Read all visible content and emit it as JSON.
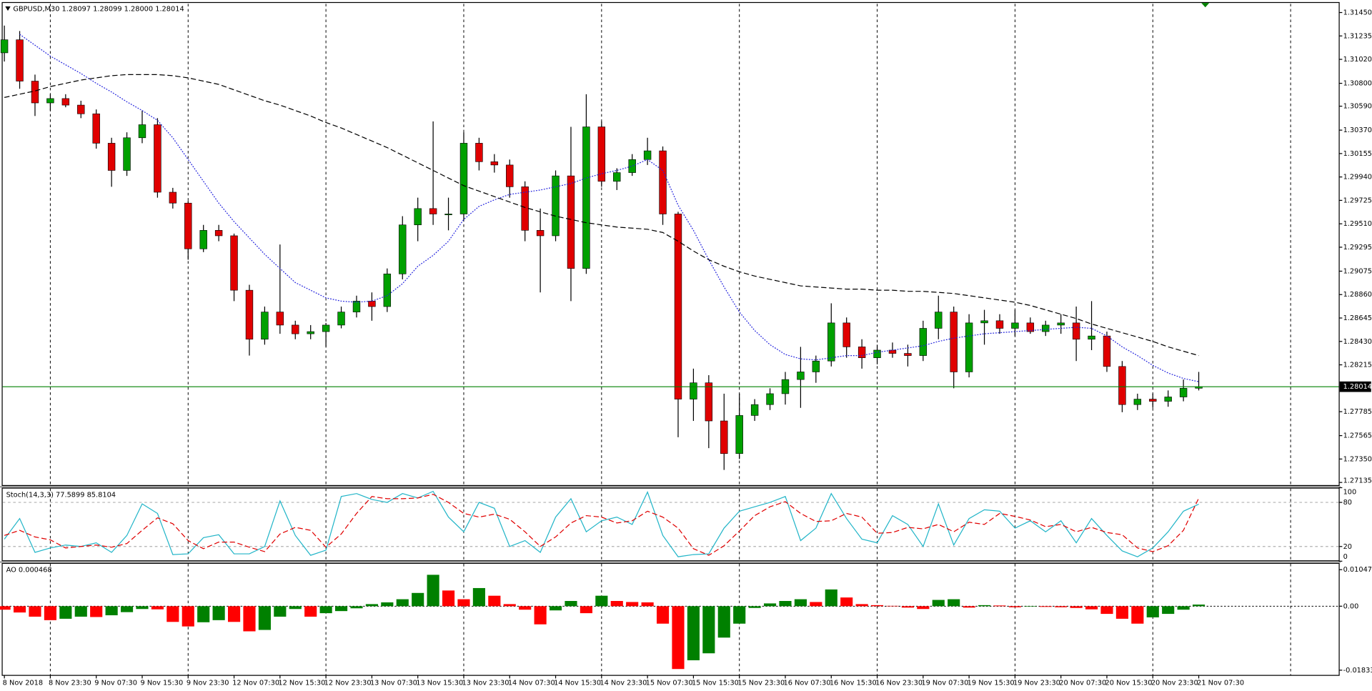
{
  "chart_data": [
    {
      "type": "candlestick",
      "title": "GBPUSD,M30  1.28097 1.28099 1.28000 1.28014",
      "categories": [
        "8 Nov 2018",
        null,
        null,
        "8 Nov 23:30",
        null,
        null,
        "9 Nov 07:30",
        null,
        null,
        "9 Nov 15:30",
        null,
        null,
        "9 Nov 23:30",
        null,
        null,
        "12 Nov 07:30",
        null,
        null,
        "12 Nov 15:30",
        null,
        null,
        "12 Nov 23:30",
        null,
        null,
        "13 Nov 07:30",
        null,
        null,
        "13 Nov 15:30",
        null,
        null,
        "13 Nov 23:30",
        null,
        null,
        "14 Nov 07:30",
        null,
        null,
        "14 Nov 15:30",
        null,
        null,
        "14 Nov 23:30",
        null,
        null,
        "15 Nov 07:30",
        null,
        null,
        "15 Nov 15:30",
        null,
        null,
        "15 Nov 23:30",
        null,
        null,
        "16 Nov 07:30",
        null,
        null,
        "16 Nov 15:30",
        null,
        null,
        "16 Nov 23:30",
        null,
        null,
        "19 Nov 07:30",
        null,
        null,
        "19 Nov 15:30",
        null,
        null,
        "19 Nov 23:30",
        null,
        null,
        "20 Nov 07:30",
        null,
        null,
        "20 Nov 15:30",
        null,
        null,
        "20 Nov 23:30",
        null,
        null,
        "21 Nov 07:30"
      ],
      "open": [
        1.3108,
        1.312,
        1.3082,
        1.3062,
        1.3066,
        1.306,
        1.3052,
        1.3025,
        1.3,
        1.303,
        1.3042,
        1.298,
        1.297,
        1.2928,
        1.2945,
        1.294,
        1.289,
        1.2845,
        1.287,
        1.2858,
        1.285,
        1.2852,
        1.2858,
        1.287,
        1.288,
        1.2875,
        1.2905,
        1.295,
        1.2965,
        1.296,
        1.296,
        1.3025,
        1.3008,
        1.3005,
        1.2985,
        1.2945,
        1.294,
        1.2995,
        1.291,
        1.304,
        1.299,
        1.2998,
        1.301,
        1.3018,
        1.296,
        1.279,
        1.2805,
        1.277,
        1.274,
        1.2775,
        1.2785,
        1.2795,
        1.2808,
        1.2815,
        1.2825,
        1.286,
        1.2838,
        1.2828,
        1.2835,
        1.2832,
        1.283,
        1.2855,
        1.287,
        1.2815,
        1.286,
        1.2862,
        1.2855,
        1.286,
        1.2852,
        1.2858,
        1.286,
        1.2845,
        1.2848,
        1.282,
        1.2785,
        1.279,
        1.2788,
        1.2792,
        1.28
      ],
      "high": [
        1.3133,
        1.3128,
        1.3088,
        1.307,
        1.307,
        1.3064,
        1.3056,
        1.303,
        1.3035,
        1.3055,
        1.3048,
        1.2984,
        1.2972,
        1.295,
        1.295,
        1.2942,
        1.2895,
        1.2875,
        1.2932,
        1.2862,
        1.2858,
        1.286,
        1.2875,
        1.2885,
        1.2888,
        1.291,
        1.2958,
        1.2975,
        1.3045,
        1.2975,
        1.3035,
        1.303,
        1.3015,
        1.301,
        1.299,
        1.2965,
        1.3,
        1.304,
        1.307,
        1.3045,
        1.3002,
        1.3015,
        1.303,
        1.3022,
        1.2962,
        1.2818,
        1.2812,
        1.2795,
        1.2795,
        1.279,
        1.28,
        1.2815,
        1.2838,
        1.283,
        1.2878,
        1.2865,
        1.2845,
        1.284,
        1.2842,
        1.284,
        1.2862,
        1.2885,
        1.2875,
        1.2868,
        1.2872,
        1.2868,
        1.2872,
        1.2865,
        1.2862,
        1.2868,
        1.2875,
        1.288,
        1.2852,
        1.2825,
        1.2795,
        1.2795,
        1.2798,
        1.2808,
        1.2815
      ],
      "low": [
        1.31,
        1.3075,
        1.305,
        1.3055,
        1.3058,
        1.3048,
        1.302,
        1.2985,
        1.2995,
        1.3025,
        1.2975,
        1.2965,
        1.2918,
        1.2925,
        1.2935,
        1.288,
        1.283,
        1.284,
        1.285,
        1.2845,
        1.2845,
        1.2838,
        1.2855,
        1.2865,
        1.2862,
        1.287,
        1.29,
        1.2935,
        1.295,
        1.2945,
        1.2955,
        1.3,
        1.2998,
        1.2975,
        1.2935,
        1.2888,
        1.2935,
        1.288,
        1.2905,
        1.2985,
        1.2982,
        1.2995,
        1.3005,
        1.295,
        1.2755,
        1.277,
        1.2745,
        1.2725,
        1.2735,
        1.277,
        1.278,
        1.2785,
        1.2782,
        1.2805,
        1.282,
        1.2828,
        1.2818,
        1.2822,
        1.2828,
        1.282,
        1.2825,
        1.2845,
        1.28,
        1.281,
        1.284,
        1.285,
        1.2848,
        1.285,
        1.2848,
        1.285,
        1.2825,
        1.2835,
        1.2815,
        1.2778,
        1.278,
        1.2782,
        1.2783,
        1.2788,
        1.2798
      ],
      "close": [
        1.312,
        1.3082,
        1.3062,
        1.3066,
        1.306,
        1.3052,
        1.3025,
        1.3,
        1.303,
        1.3042,
        1.298,
        1.297,
        1.2928,
        1.2945,
        1.294,
        1.289,
        1.2845,
        1.287,
        1.2858,
        1.285,
        1.2852,
        1.2858,
        1.287,
        1.288,
        1.2875,
        1.2905,
        1.295,
        1.2965,
        1.296,
        1.296,
        1.3025,
        1.3008,
        1.3005,
        1.2985,
        1.2945,
        1.294,
        1.2995,
        1.291,
        1.304,
        1.299,
        1.2998,
        1.301,
        1.3018,
        1.296,
        1.279,
        1.2805,
        1.277,
        1.274,
        1.2775,
        1.2785,
        1.2795,
        1.2808,
        1.2815,
        1.2825,
        1.286,
        1.2838,
        1.2828,
        1.2835,
        1.2832,
        1.283,
        1.2855,
        1.287,
        1.2815,
        1.286,
        1.2862,
        1.2855,
        1.286,
        1.2852,
        1.2858,
        1.286,
        1.2845,
        1.2848,
        1.282,
        1.2785,
        1.279,
        1.2788,
        1.2792,
        1.28,
        1.28014
      ],
      "up_color": "#00a000",
      "down_color": "#e00000",
      "wick_color": "#000000",
      "lines": [
        {
          "color": "#2222dd",
          "dash": "dotted",
          "values": [
            null,
            1.3125,
            1.3115,
            1.3105,
            1.3097,
            1.3089,
            1.308,
            1.3072,
            1.3063,
            1.3055,
            1.3046,
            1.303,
            1.301,
            1.299,
            1.297,
            1.2953,
            1.2938,
            1.2923,
            1.291,
            1.2897,
            1.289,
            1.2883,
            1.288,
            1.2879,
            1.288,
            1.2885,
            1.2896,
            1.2912,
            1.2922,
            1.2935,
            1.2955,
            1.2967,
            1.2973,
            1.2978,
            1.298,
            1.2982,
            1.2985,
            1.2988,
            1.2993,
            1.2997,
            1.3,
            1.3004,
            1.301,
            1.3,
            1.2968,
            1.2945,
            1.2918,
            1.2893,
            1.287,
            1.2853,
            1.284,
            1.2831,
            1.2827,
            1.2826,
            1.2828,
            1.283,
            1.283,
            1.2833,
            1.2835,
            1.2837,
            1.2839,
            1.2843,
            1.2846,
            1.2848,
            1.285,
            1.2851,
            1.2852,
            1.2853,
            1.2854,
            1.2855,
            1.2856,
            1.2855,
            1.2848,
            1.2838,
            1.283,
            1.2821,
            1.2814,
            1.2809,
            1.2806
          ]
        },
        {
          "color": "#000000",
          "dash": "dashed",
          "values": [
            1.3067,
            1.307,
            1.3073,
            1.3077,
            1.308,
            1.3083,
            1.3085,
            1.3087,
            1.3088,
            1.3088,
            1.3088,
            1.3087,
            1.3085,
            1.3082,
            1.3079,
            1.3074,
            1.3069,
            1.3064,
            1.306,
            1.3055,
            1.305,
            1.3044,
            1.3039,
            1.3033,
            1.3027,
            1.3021,
            1.3014,
            1.3007,
            1.3,
            1.2993,
            1.2986,
            1.2981,
            1.2976,
            1.2971,
            1.2966,
            1.2962,
            1.2958,
            1.2955,
            1.2952,
            1.295,
            1.2948,
            1.2947,
            1.2946,
            1.2943,
            1.2935,
            1.2926,
            1.2918,
            1.2912,
            1.2907,
            1.2903,
            1.29,
            1.2897,
            1.2894,
            1.2893,
            1.2892,
            1.2891,
            1.2891,
            1.289,
            1.289,
            1.2889,
            1.2889,
            1.2888,
            1.2887,
            1.2885,
            1.2883,
            1.2881,
            1.2879,
            1.2876,
            1.2872,
            1.2868,
            1.2864,
            1.2859,
            1.2855,
            1.2851,
            1.2847,
            1.2843,
            1.2838,
            1.2834,
            1.283
          ]
        }
      ],
      "current_price": 1.28014,
      "current_color": "#008000",
      "ylim": [
        1.27111,
        1.31538
      ],
      "yticks": [
        {
          "value": 1.3145,
          "label": "1.31450"
        },
        1.31235,
        {
          "value": 1.3102,
          "label": "1.31020"
        },
        {
          "value": 1.308,
          "label": "1.30800"
        },
        {
          "value": 1.3059,
          "label": "1.30590"
        },
        {
          "value": 1.3037,
          "label": "1.30370"
        },
        1.30155,
        {
          "value": 1.2994,
          "label": "1.29940"
        },
        1.29725,
        {
          "value": 1.2951,
          "label": "1.29510"
        },
        1.29295,
        1.29075,
        {
          "value": 1.2886,
          "label": "1.28860"
        },
        1.28645,
        {
          "value": 1.2843,
          "label": "1.28430"
        },
        1.28215,
        1.27785,
        1.27565,
        {
          "value": 1.2735,
          "label": "1.27350"
        },
        1.27135
      ]
    },
    {
      "type": "line",
      "title": "Stoch(14,3,3) 77.5899 85.8104",
      "series": [
        {
          "color": "#22b5c8",
          "dash": "solid",
          "values": [
            30,
            58,
            12,
            18,
            22,
            20,
            25,
            12,
            35,
            78,
            65,
            9,
            10,
            32,
            36,
            10,
            10,
            20,
            82,
            35,
            8,
            15,
            88,
            92,
            84,
            80,
            92,
            86,
            95,
            60,
            40,
            80,
            72,
            20,
            28,
            12,
            60,
            85,
            40,
            55,
            60,
            50,
            94,
            35,
            6,
            9,
            10,
            45,
            68,
            74,
            80,
            88,
            28,
            45,
            92,
            58,
            30,
            25,
            62,
            50,
            20,
            78,
            22,
            58,
            70,
            68,
            45,
            55,
            40,
            55,
            25,
            58,
            35,
            14,
            6,
            18,
            40,
            68,
            77.5899
          ]
        },
        {
          "color": "#e00000",
          "dash": "dashed",
          "values": [
            35,
            42,
            33,
            29,
            18,
            20,
            22,
            19,
            24,
            42,
            59,
            51,
            28,
            17,
            26,
            26,
            19,
            13,
            37,
            46,
            42,
            19,
            37,
            65,
            88,
            85,
            85,
            86,
            91,
            80,
            65,
            60,
            64,
            57,
            40,
            20,
            33,
            52,
            62,
            60,
            52,
            55,
            68,
            60,
            45,
            17,
            8,
            21,
            41,
            62,
            74,
            81,
            65,
            54,
            55,
            65,
            60,
            38,
            39,
            46,
            44,
            50,
            40,
            53,
            50,
            65,
            61,
            56,
            47,
            50,
            40,
            46,
            39,
            36,
            18,
            13,
            21,
            42,
            85.8104
          ]
        }
      ],
      "ylim": [
        0,
        100
      ],
      "yticks": [
        100,
        80,
        20,
        0
      ]
    },
    {
      "type": "bar",
      "title": "AO 0.000468",
      "values": [
        -0.001,
        -0.0018,
        -0.003,
        -0.004,
        -0.0036,
        -0.003,
        -0.0031,
        -0.0026,
        -0.0017,
        -0.0008,
        -0.0009,
        -0.0045,
        -0.0058,
        -0.0046,
        -0.004,
        -0.0045,
        -0.0072,
        -0.0068,
        -0.003,
        -0.0008,
        -0.003,
        -0.002,
        -0.0014,
        -0.0006,
        0.0006,
        0.0011,
        0.002,
        0.0038,
        0.009,
        0.0045,
        0.002,
        0.0052,
        0.003,
        0.0006,
        -0.001,
        -0.0052,
        -0.0012,
        0.0015,
        -0.002,
        0.003,
        0.0015,
        0.0012,
        0.0011,
        -0.005,
        -0.018,
        -0.0155,
        -0.0135,
        -0.009,
        -0.005,
        -0.0005,
        0.0008,
        0.0015,
        0.002,
        0.0012,
        0.0048,
        0.0025,
        0.0006,
        0.0003,
        0.0001,
        -0.0004,
        -0.0008,
        0.0018,
        0.002,
        -0.0004,
        0.0003,
        0.0002,
        -0.0003,
        -0.0001,
        -0.0002,
        -0.0003,
        -0.0005,
        -0.0009,
        -0.0022,
        -0.0036,
        -0.005,
        -0.0032,
        -0.0022,
        -0.001,
        0.000468
      ],
      "up_color": "#008000",
      "down_color": "#ff0000",
      "ylim": [
        -0.0197,
        0.0124
      ],
      "yticks": [
        0.010473,
        {
          "value": 0,
          "label": "0.00"
        },
        -0.018339
      ]
    }
  ]
}
